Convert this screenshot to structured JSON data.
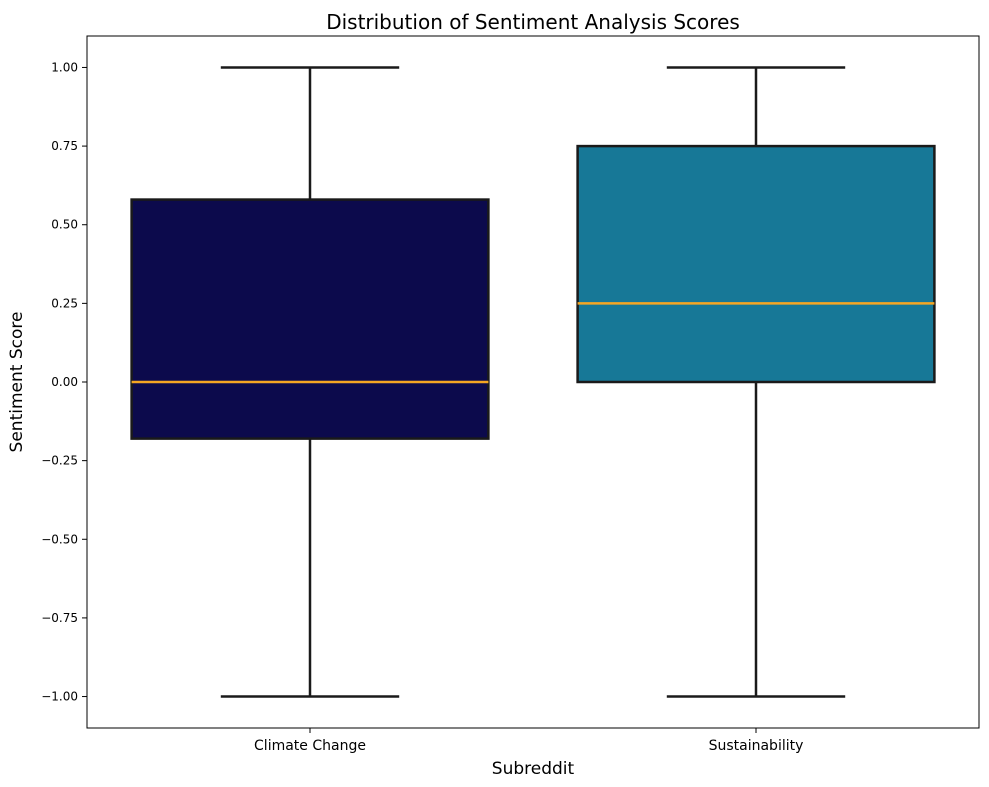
{
  "chart_data": {
    "type": "box",
    "title": "Distribution of Sentiment Analysis Scores",
    "xlabel": "Subreddit",
    "ylabel": "Sentiment Score",
    "ylim": [
      -1.1,
      1.1
    ],
    "yticks": [
      1.0,
      0.75,
      0.5,
      0.25,
      0.0,
      -0.25,
      -0.5,
      -0.75,
      -1.0
    ],
    "ytick_labels": [
      "1.00",
      "0.75",
      "0.50",
      "0.25",
      "0.00",
      "−0.25",
      "−0.50",
      "−0.75",
      "−1.00"
    ],
    "categories": [
      "Climate Change",
      "Sustainability"
    ],
    "boxes": [
      {
        "category": "Climate Change",
        "min": -1.0,
        "q1": -0.18,
        "median": 0.0,
        "q3": 0.58,
        "max": 1.0,
        "color": "#0c0a4c"
      },
      {
        "category": "Sustainability",
        "min": -1.0,
        "q1": 0.0,
        "median": 0.25,
        "q3": 0.75,
        "max": 1.0,
        "color": "#177897"
      }
    ],
    "median_color": "#f5a623",
    "grid": false,
    "legend": false
  }
}
